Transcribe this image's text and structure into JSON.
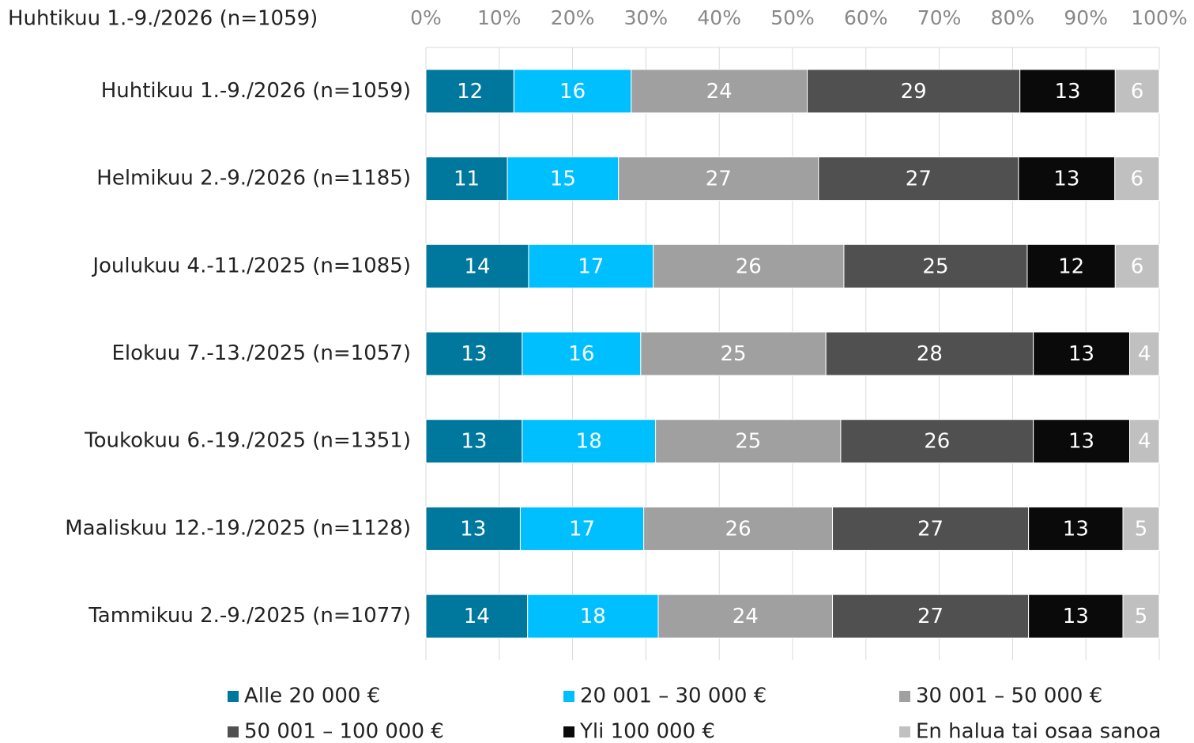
{
  "chart_data": {
    "type": "bar",
    "orientation": "horizontal",
    "stacked": "percent",
    "subtitle": "Huhtikuu  1.-9./2026  (n=1059)",
    "categories": [
      "Huhtikuu 1.-9./2026 (n=1059)",
      "Helmikuu 2.-9./2026 (n=1185)",
      "Joulukuu 4.-11./2025 (n=1085)",
      "Elokuu 7.-13./2025 (n=1057)",
      "Toukokuu 6.-19./2025 (n=1351)",
      "Maaliskuu 12.-19./2025 (n=1128)",
      "Tammikuu 2.-9./2025 (n=1077)"
    ],
    "series": [
      {
        "name": "Alle 20 000 €",
        "color": "#00789e",
        "values": [
          12,
          11,
          14,
          13,
          13,
          13,
          14
        ]
      },
      {
        "name": "20 001 – 30 000 €",
        "color": "#00bfff",
        "values": [
          16,
          15,
          17,
          16,
          18,
          17,
          18
        ]
      },
      {
        "name": "30 001 – 50 000 €",
        "color": "#a0a0a0",
        "values": [
          24,
          27,
          26,
          25,
          25,
          26,
          24
        ]
      },
      {
        "name": "50 001 – 100 000 €",
        "color": "#505050",
        "values": [
          29,
          27,
          25,
          28,
          26,
          27,
          27
        ]
      },
      {
        "name": "Yli 100 000 €",
        "color": "#0a0a0a",
        "values": [
          13,
          13,
          12,
          13,
          13,
          13,
          13
        ]
      },
      {
        "name": "En halua tai osaa sanoa",
        "color": "#c0c0c0",
        "values": [
          6,
          6,
          6,
          4,
          4,
          5,
          5
        ]
      }
    ],
    "xlim": [
      0,
      100
    ],
    "xticks": [
      {
        "value": 0,
        "label": "0%"
      },
      {
        "value": 10,
        "label": "10%"
      },
      {
        "value": 20,
        "label": "20%"
      },
      {
        "value": 30,
        "label": "30%"
      },
      {
        "value": 40,
        "label": "40%"
      },
      {
        "value": 50,
        "label": "50%"
      },
      {
        "value": 60,
        "label": "60%"
      },
      {
        "value": 70,
        "label": "70%"
      },
      {
        "value": 80,
        "label": "80%"
      },
      {
        "value": 90,
        "label": "90%"
      },
      {
        "value": 100,
        "label": "100%"
      }
    ],
    "grid": true,
    "legend": "bottom"
  }
}
